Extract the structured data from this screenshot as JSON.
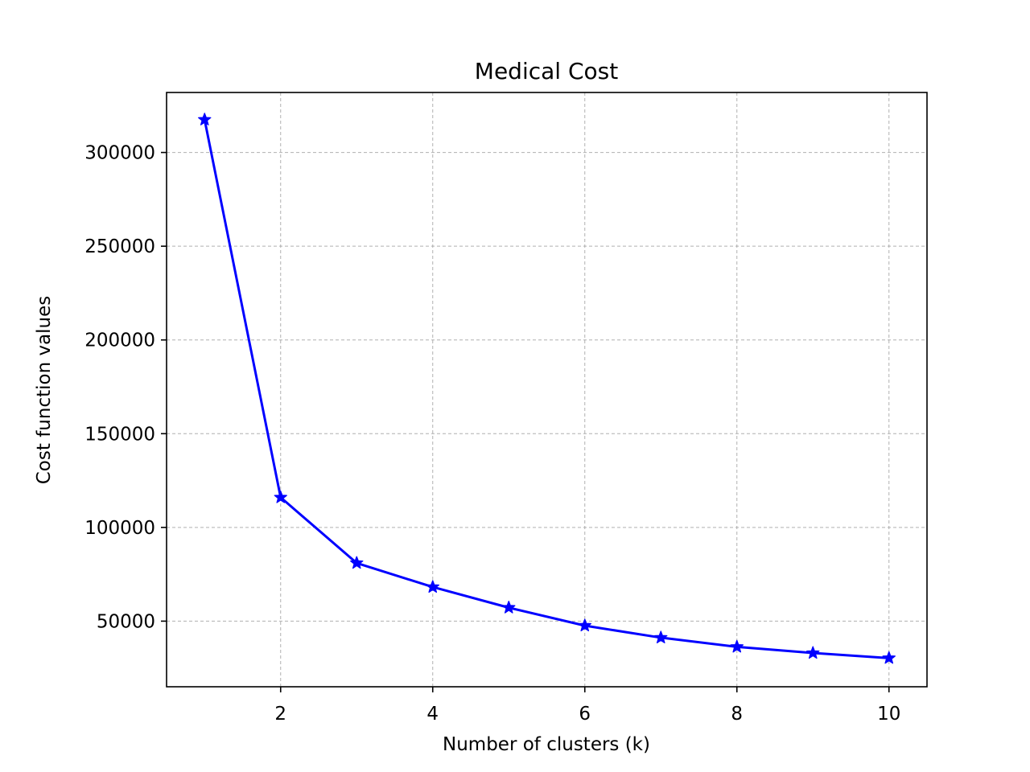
{
  "chart_data": {
    "type": "line",
    "title": "Medical Cost",
    "xlabel": "Number of clusters (k)",
    "ylabel": "Cost function values",
    "x": [
      1,
      2,
      3,
      4,
      5,
      6,
      7,
      8,
      9,
      10
    ],
    "series": [
      {
        "values": [
          317500,
          116000,
          81000,
          68200,
          57200,
          47600,
          41200,
          36300,
          33000,
          30300
        ],
        "color": "#0000ff",
        "marker": "star"
      }
    ],
    "xlim": [
      0.5,
      10.5
    ],
    "ylim": [
      15000,
      332000
    ],
    "x_ticks": [
      2,
      4,
      6,
      8,
      10
    ],
    "x_tick_labels": [
      "2",
      "4",
      "6",
      "8",
      "10"
    ],
    "y_ticks": [
      50000,
      100000,
      150000,
      200000,
      250000,
      300000
    ],
    "y_tick_labels": [
      "50000",
      "100000",
      "150000",
      "200000",
      "250000",
      "300000"
    ],
    "grid": true,
    "grid_style": "dashed",
    "grid_color": "#b0b0b0",
    "axes_color": "#000000"
  }
}
